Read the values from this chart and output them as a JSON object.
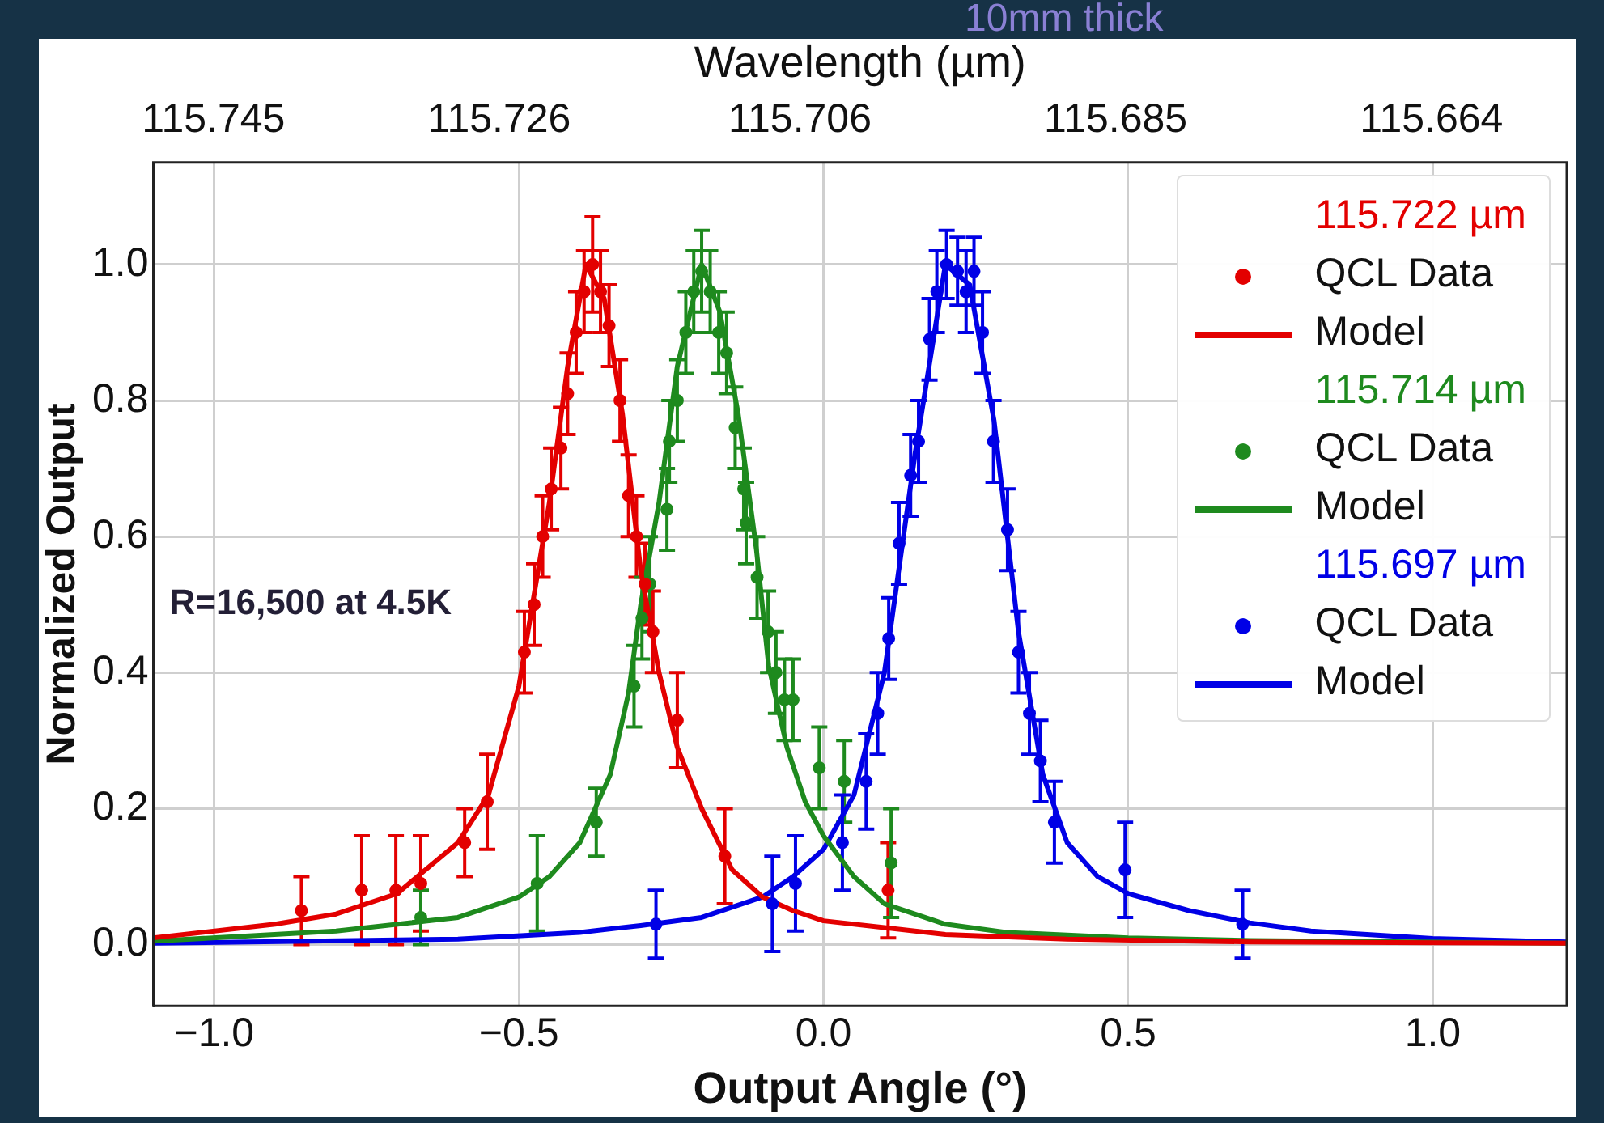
{
  "chart_data": {
    "type": "scatter",
    "xlabel": "Output Angle (°)",
    "ylabel": "Normalized Output",
    "x2label": "Wavelength (µm)",
    "xlim": [
      -1.1,
      1.22
    ],
    "xticks": [
      {
        "value": -1,
        "label": "−1.0"
      },
      {
        "value": -0.5,
        "label": "−0.5"
      },
      {
        "value": 0,
        "label": "0.0"
      },
      {
        "value": 0.5,
        "label": "0.5"
      },
      {
        "value": 1,
        "label": "1.0"
      }
    ],
    "x2lim": [
      115.749,
      115.655
    ],
    "x2ticks": [
      115.745,
      115.726,
      115.706,
      115.685,
      115.664
    ],
    "ylim": [
      -0.09,
      1.15
    ],
    "yticks": [
      {
        "value": 0,
        "label": "0.0"
      },
      {
        "value": 0.2,
        "label": "0.2"
      },
      {
        "value": 0.4,
        "label": "0.4"
      },
      {
        "value": 0.6,
        "label": "0.6"
      },
      {
        "value": 0.8,
        "label": "0.8"
      },
      {
        "value": 1,
        "label": "1.0"
      }
    ],
    "grid": true,
    "legend": "top right",
    "annotations": [
      "115.722 µm",
      "115.714 µm",
      "115.697 µm",
      "R=16,500 at 4.5K",
      "10mm thick"
    ],
    "series": [
      {
        "name": "QCL Data",
        "type": "scatter",
        "marker": "circle",
        "color": "#e30000",
        "x": [
          -0.857,
          -0.758,
          -0.702,
          -0.661,
          -0.589,
          -0.552,
          -0.491,
          -0.475,
          -0.461,
          -0.447,
          -0.431,
          -0.42,
          -0.406,
          -0.393,
          -0.379,
          -0.366,
          -0.352,
          -0.334,
          -0.32,
          -0.307,
          -0.293,
          -0.28,
          -0.24,
          -0.162,
          0.106
        ],
        "values": [
          0.05,
          0.08,
          0.08,
          0.09,
          0.15,
          0.21,
          0.43,
          0.5,
          0.6,
          0.67,
          0.73,
          0.81,
          0.9,
          0.96,
          1.0,
          0.96,
          0.91,
          0.8,
          0.66,
          0.6,
          0.53,
          0.46,
          0.33,
          0.13,
          0.08
        ],
        "errors": [
          0.05,
          0.08,
          0.08,
          0.07,
          0.05,
          0.07,
          0.06,
          0.06,
          0.06,
          0.06,
          0.06,
          0.06,
          0.06,
          0.06,
          0.07,
          0.06,
          0.06,
          0.06,
          0.06,
          0.06,
          0.06,
          0.06,
          0.07,
          0.07,
          0.07
        ]
      },
      {
        "name": "Model",
        "type": "line",
        "marker": "none",
        "color": "#e30000",
        "x": [
          -1.1,
          -0.9,
          -0.8,
          -0.7,
          -0.6,
          -0.55,
          -0.5,
          -0.45,
          -0.42,
          -0.39,
          -0.36,
          -0.33,
          -0.3,
          -0.27,
          -0.24,
          -0.2,
          -0.15,
          -0.1,
          -0.05,
          0,
          0.1,
          0.2,
          0.4,
          0.7,
          1.22
        ],
        "values": [
          0.01,
          0.03,
          0.045,
          0.075,
          0.15,
          0.22,
          0.38,
          0.65,
          0.85,
          1.0,
          0.95,
          0.78,
          0.55,
          0.4,
          0.29,
          0.2,
          0.11,
          0.07,
          0.05,
          0.035,
          0.025,
          0.015,
          0.008,
          0.004,
          0.002
        ]
      },
      {
        "name": "QCL Data",
        "type": "scatter",
        "marker": "circle",
        "color": "#1e8a1e",
        "x": [
          -0.661,
          -0.47,
          -0.373,
          -0.311,
          -0.298,
          -0.285,
          -0.257,
          -0.253,
          -0.24,
          -0.226,
          -0.213,
          -0.2,
          -0.186,
          -0.172,
          -0.159,
          -0.145,
          -0.131,
          -0.127,
          -0.109,
          -0.091,
          -0.078,
          -0.064,
          -0.05,
          -0.007,
          0.034,
          0.111
        ],
        "values": [
          0.04,
          0.09,
          0.18,
          0.38,
          0.48,
          0.53,
          0.64,
          0.74,
          0.8,
          0.9,
          0.96,
          0.99,
          0.96,
          0.9,
          0.87,
          0.76,
          0.67,
          0.62,
          0.54,
          0.46,
          0.4,
          0.36,
          0.36,
          0.26,
          0.24,
          0.12
        ],
        "errors": [
          0.04,
          0.07,
          0.05,
          0.06,
          0.06,
          0.07,
          0.06,
          0.06,
          0.06,
          0.06,
          0.06,
          0.06,
          0.06,
          0.06,
          0.06,
          0.06,
          0.06,
          0.06,
          0.06,
          0.06,
          0.06,
          0.06,
          0.06,
          0.06,
          0.06,
          0.08
        ]
      },
      {
        "name": "Model",
        "type": "line",
        "marker": "none",
        "color": "#1e8a1e",
        "x": [
          -1.1,
          -0.8,
          -0.6,
          -0.5,
          -0.45,
          -0.4,
          -0.35,
          -0.32,
          -0.3,
          -0.27,
          -0.24,
          -0.2,
          -0.17,
          -0.14,
          -0.11,
          -0.09,
          -0.06,
          -0.03,
          0,
          0.05,
          0.1,
          0.2,
          0.3,
          0.5,
          0.7,
          1.22
        ],
        "values": [
          0.005,
          0.02,
          0.04,
          0.07,
          0.1,
          0.15,
          0.25,
          0.37,
          0.5,
          0.65,
          0.85,
          1.0,
          0.93,
          0.78,
          0.58,
          0.41,
          0.29,
          0.21,
          0.16,
          0.1,
          0.06,
          0.03,
          0.018,
          0.01,
          0.006,
          0.002
        ]
      },
      {
        "name": "QCL Data",
        "type": "scatter",
        "marker": "circle",
        "color": "#0000e6",
        "x": [
          -0.275,
          -0.084,
          -0.046,
          0.031,
          0.07,
          0.089,
          0.107,
          0.124,
          0.143,
          0.156,
          0.174,
          0.186,
          0.202,
          0.22,
          0.234,
          0.247,
          0.261,
          0.279,
          0.302,
          0.32,
          0.338,
          0.356,
          0.379,
          0.495,
          0.688
        ],
        "values": [
          0.03,
          0.06,
          0.09,
          0.15,
          0.24,
          0.34,
          0.45,
          0.59,
          0.69,
          0.74,
          0.89,
          0.96,
          1.0,
          0.99,
          0.96,
          0.99,
          0.9,
          0.74,
          0.61,
          0.43,
          0.34,
          0.27,
          0.18,
          0.11,
          0.03
        ],
        "errors": [
          0.05,
          0.07,
          0.07,
          0.07,
          0.07,
          0.06,
          0.06,
          0.06,
          0.06,
          0.06,
          0.06,
          0.06,
          0.05,
          0.05,
          0.06,
          0.05,
          0.06,
          0.06,
          0.06,
          0.06,
          0.06,
          0.06,
          0.06,
          0.07,
          0.05
        ]
      },
      {
        "name": "Model",
        "type": "line",
        "marker": "none",
        "color": "#0000e6",
        "x": [
          -1.1,
          -0.6,
          -0.4,
          -0.3,
          -0.2,
          -0.1,
          -0.05,
          0,
          0.05,
          0.1,
          0.15,
          0.2,
          0.24,
          0.28,
          0.32,
          0.36,
          0.4,
          0.45,
          0.5,
          0.6,
          0.7,
          0.8,
          1.0,
          1.22
        ],
        "values": [
          0.002,
          0.008,
          0.018,
          0.028,
          0.04,
          0.07,
          0.1,
          0.14,
          0.22,
          0.4,
          0.72,
          1.0,
          0.97,
          0.77,
          0.46,
          0.25,
          0.15,
          0.1,
          0.075,
          0.05,
          0.032,
          0.02,
          0.009,
          0.004
        ]
      }
    ]
  }
}
